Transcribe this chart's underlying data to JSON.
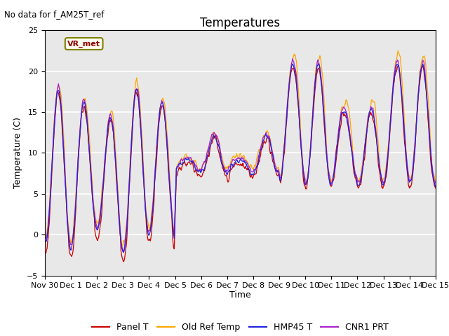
{
  "title": "Temperatures",
  "xlabel": "Time",
  "ylabel": "Temperature (C)",
  "ylim": [
    -5,
    25
  ],
  "plot_bg": "#e8e8e8",
  "fig_bg": "#ffffff",
  "annotation": "No data for f_AM25T_ref",
  "vr_label": "VR_met",
  "series_colors": {
    "Panel T": "#cc0000",
    "Old Ref Temp": "#ffa500",
    "HMP45 T": "#2222dd",
    "CNR1 PRT": "#aa22cc"
  },
  "lw": 0.9,
  "yticks": [
    -5,
    0,
    5,
    10,
    15,
    20,
    25
  ],
  "xtick_positions": [
    0,
    1,
    2,
    3,
    4,
    5,
    6,
    7,
    8,
    9,
    10,
    11,
    12,
    13,
    14,
    15
  ],
  "xtick_labels": [
    "Nov 30",
    "Dec 1",
    "Dec 2",
    "Dec 3",
    "Dec 4",
    "Dec 5",
    "Dec 6",
    "Dec 7",
    "Dec 8",
    "Dec 9",
    "Dec 10",
    "Dec 11",
    "Dec 12",
    "Dec 13",
    "Dec 14",
    "Dec 15"
  ]
}
